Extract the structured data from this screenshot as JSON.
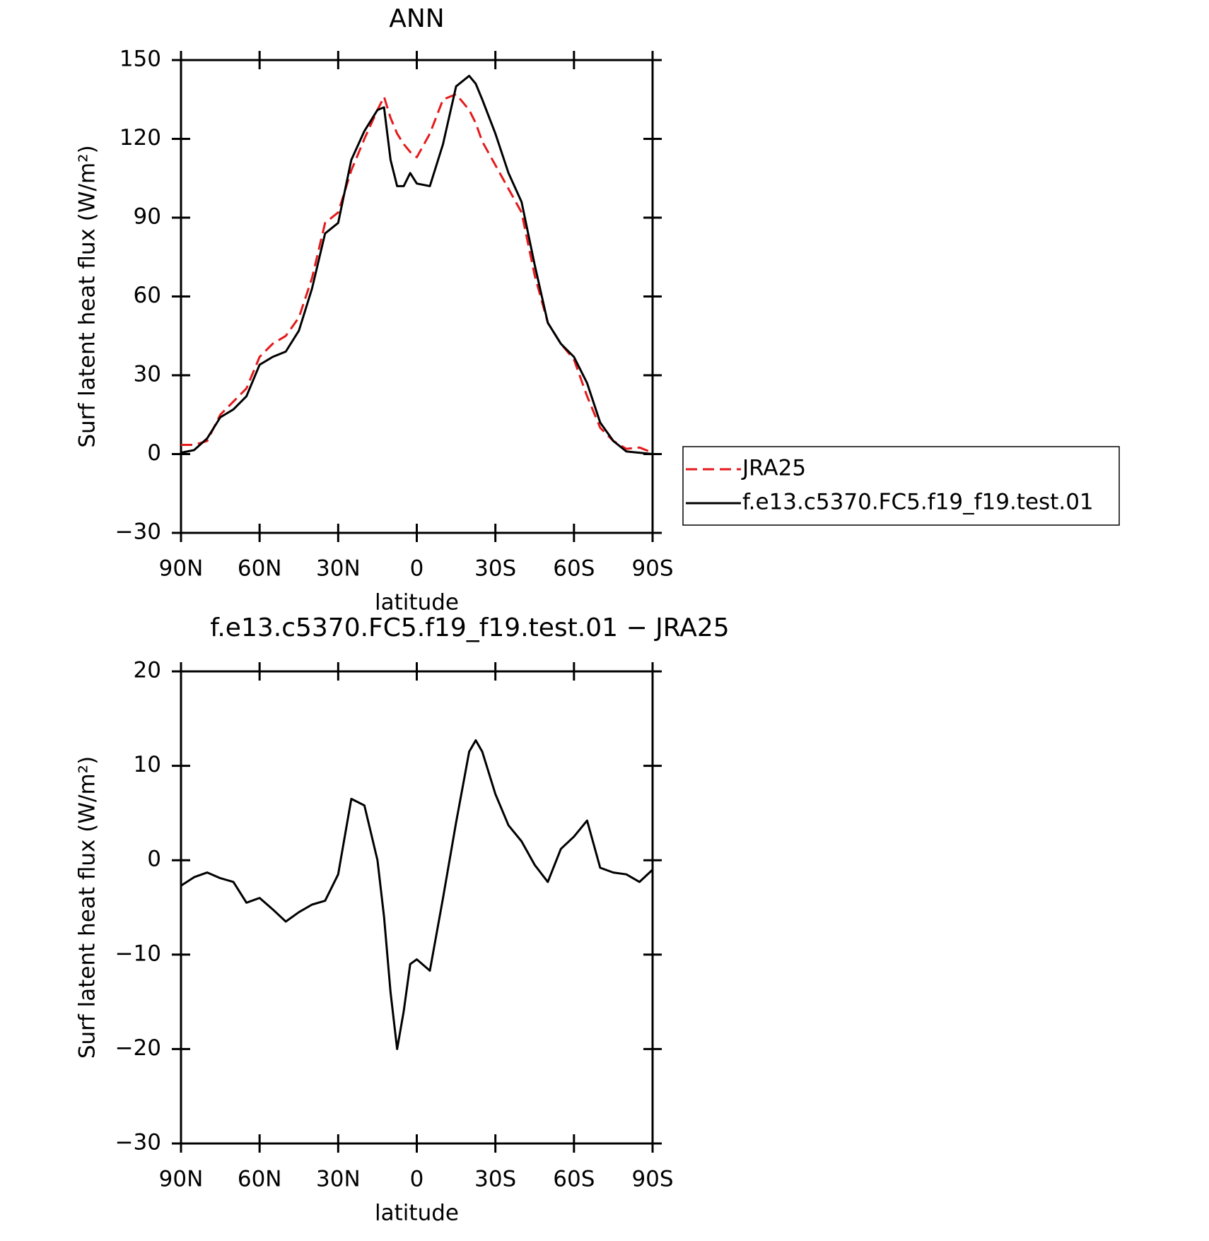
{
  "chart_data": [
    {
      "type": "line",
      "title": "ANN",
      "xlabel": "latitude",
      "ylabel": "Surf latent heat flux (W/m²)",
      "x": [
        90,
        85,
        80,
        75,
        70,
        65,
        60,
        55,
        50,
        45,
        40,
        35,
        30,
        25,
        20,
        15,
        12.5,
        10,
        7.5,
        5,
        2.5,
        0,
        -5,
        -10,
        -15,
        -20,
        -22.5,
        -25,
        -30,
        -35,
        -40,
        -45,
        -50,
        -55,
        -60,
        -65,
        -70,
        -75,
        -80,
        -85,
        -90
      ],
      "series": [
        {
          "name": "JRA25",
          "color": "#e41a1c",
          "dashed": true,
          "values": [
            3.5,
            3.5,
            5,
            15,
            20,
            25,
            37,
            42,
            45,
            52,
            67,
            88,
            92,
            108,
            120,
            131,
            136,
            128,
            122,
            118,
            115,
            113,
            122,
            135,
            137,
            131,
            126,
            119,
            110,
            101,
            92,
            68,
            50,
            42,
            36,
            22,
            10,
            5,
            2,
            2.5,
            0.5
          ]
        },
        {
          "name": "f.e13.c5370.FC5.f19_f19.test.01",
          "color": "#000000",
          "dashed": false,
          "values": [
            0.5,
            1.5,
            6,
            14,
            17,
            22,
            34,
            37,
            39,
            47,
            63,
            84,
            88,
            112,
            123,
            131,
            132,
            112,
            102,
            102,
            107,
            103,
            102,
            118,
            140,
            144,
            141,
            135,
            122,
            107,
            96,
            72,
            50,
            42,
            37,
            27,
            12,
            5,
            1,
            0.5,
            0
          ]
        }
      ],
      "xlim": [
        90,
        -90
      ],
      "xticks": [
        {
          "value": 90,
          "label": "90N"
        },
        {
          "value": 60,
          "label": "60N"
        },
        {
          "value": 30,
          "label": "30N"
        },
        0,
        {
          "value": -30,
          "label": "30S"
        },
        {
          "value": -60,
          "label": "60S"
        },
        {
          "value": -90,
          "label": "90S"
        }
      ],
      "ylim": [
        -30,
        150
      ],
      "yticks": [
        {
          "value": -30,
          "label": "−30"
        },
        0,
        30,
        60,
        90,
        120,
        150
      ],
      "legend": "right"
    },
    {
      "type": "line",
      "title": "f.e13.c5370.FC5.f19_f19.test.01 − JRA25",
      "xlabel": "latitude",
      "ylabel": "Surf latent heat flux (W/m²)",
      "x": [
        90,
        85,
        80,
        75,
        70,
        65,
        60,
        55,
        50,
        45,
        40,
        35,
        30,
        25,
        20,
        15,
        12.5,
        10,
        7.5,
        5,
        2.5,
        0,
        -5,
        -10,
        -15,
        -20,
        -22.5,
        -25,
        -30,
        -35,
        -40,
        -45,
        -50,
        -55,
        -60,
        -65,
        -70,
        -75,
        -80,
        -85,
        -90
      ],
      "series": [
        {
          "color": "#000000",
          "dashed": false,
          "values": [
            -2.7,
            -1.8,
            -1.3,
            -1.9,
            -2.3,
            -4.5,
            -4,
            -5.2,
            -6.5,
            -5.5,
            -4.7,
            -4.3,
            -1.5,
            6.5,
            5.8,
            0,
            -6,
            -14,
            -20,
            -16,
            -11,
            -10.5,
            -11.7,
            -4,
            4,
            11.5,
            12.7,
            11.5,
            7,
            3.7,
            2,
            -0.5,
            -2.3,
            1.2,
            2.5,
            4.2,
            -0.8,
            -1.3,
            -1.5,
            -2.3,
            -1
          ]
        }
      ],
      "xlim": [
        90,
        -90
      ],
      "xticks": [
        {
          "value": 90,
          "label": "90N"
        },
        {
          "value": 60,
          "label": "60N"
        },
        {
          "value": 30,
          "label": "30N"
        },
        0,
        {
          "value": -30,
          "label": "30S"
        },
        {
          "value": -60,
          "label": "60S"
        },
        {
          "value": -90,
          "label": "90S"
        }
      ],
      "ylim": [
        -30,
        20
      ],
      "yticks": [
        {
          "value": -30,
          "label": "−30"
        },
        {
          "value": -20,
          "label": "−20"
        },
        {
          "value": -10,
          "label": "−10"
        },
        0,
        10,
        20
      ]
    }
  ]
}
